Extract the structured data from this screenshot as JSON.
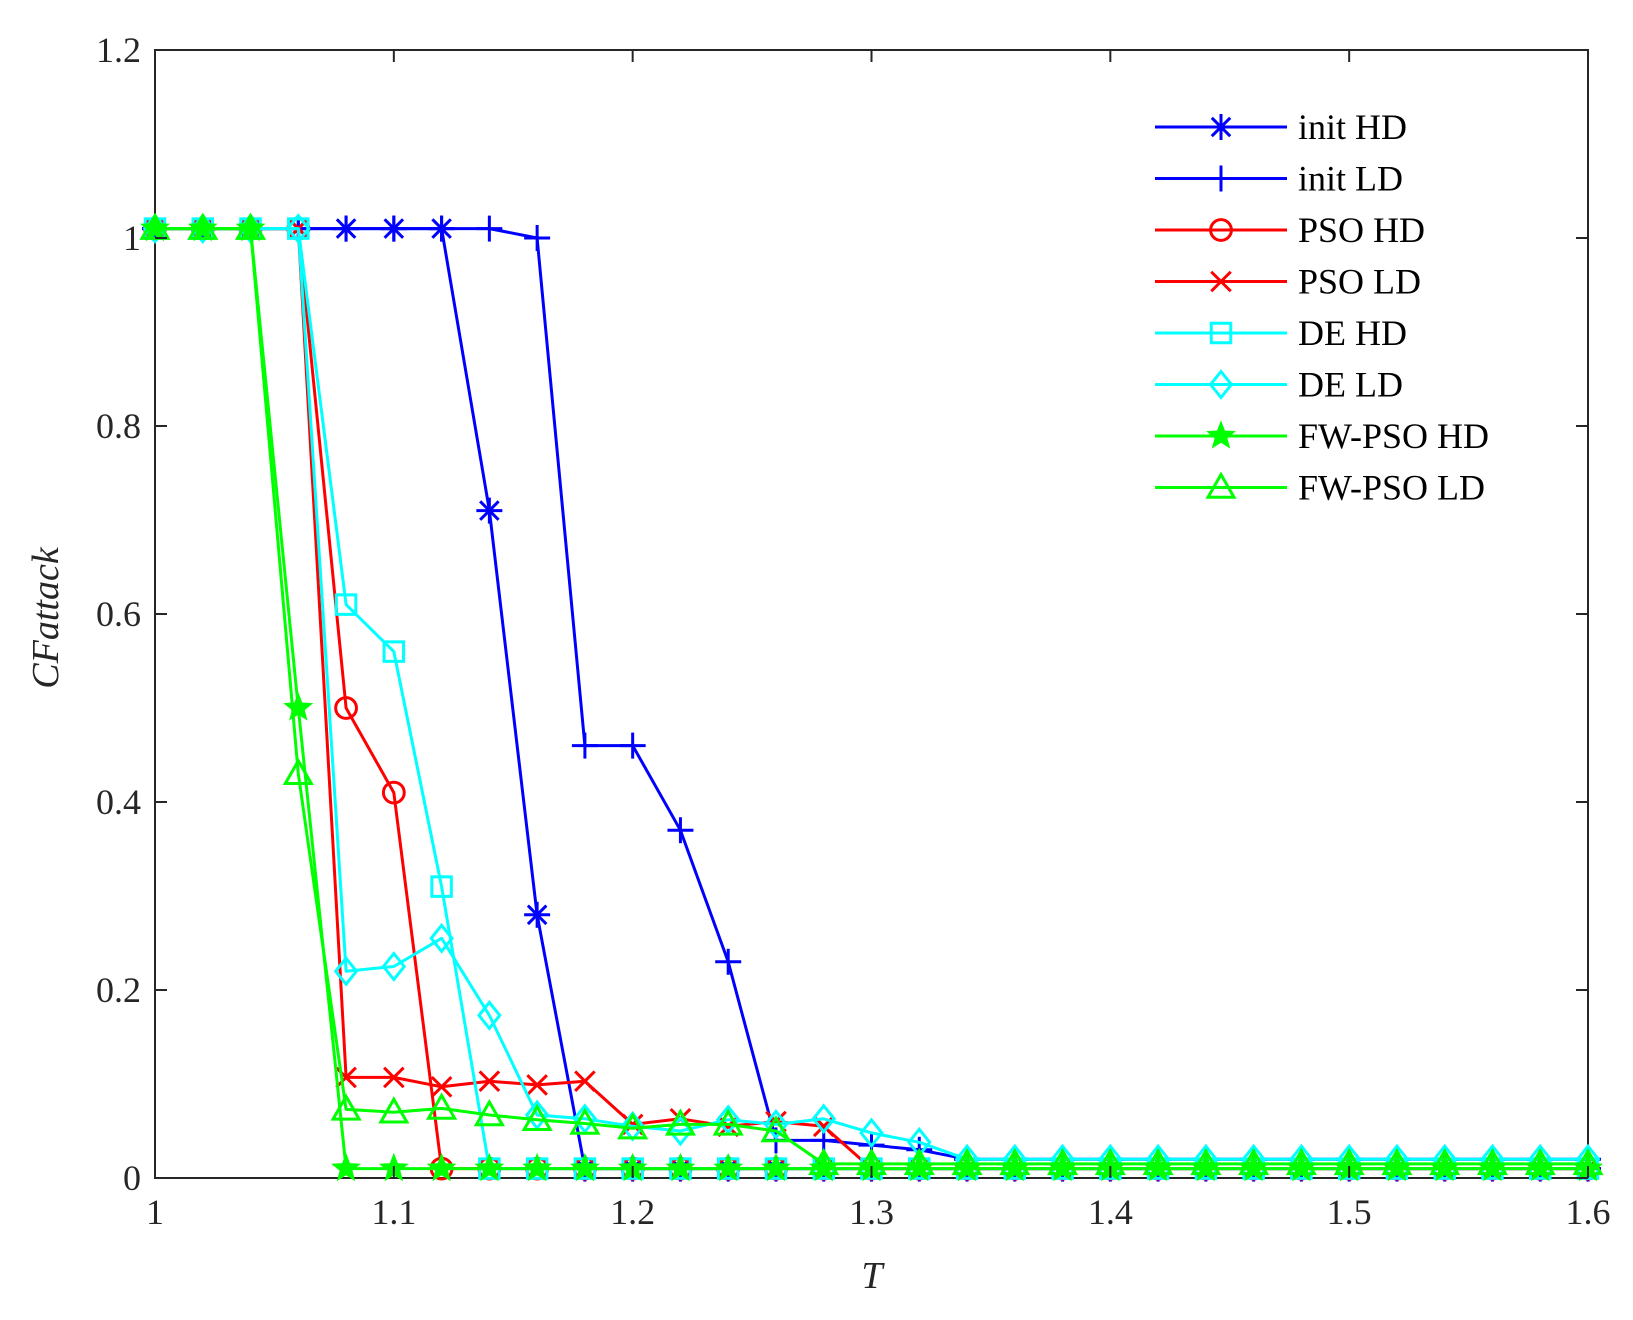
{
  "chart_data": {
    "type": "line",
    "title": "",
    "xlabel": "T",
    "ylabel": "CFattack",
    "xlim": [
      1,
      1.6
    ],
    "ylim": [
      0,
      1.2
    ],
    "xticks": [
      "1",
      "1.1",
      "1.2",
      "1.3",
      "1.4",
      "1.5",
      "1.6"
    ],
    "yticks": [
      "0",
      "0.2",
      "0.4",
      "0.6",
      "0.8",
      "1",
      "1.2"
    ],
    "grid": false,
    "legend_position": "top-right",
    "x": [
      1.0,
      1.02,
      1.04,
      1.06,
      1.08,
      1.1,
      1.12,
      1.14,
      1.16,
      1.18,
      1.2,
      1.22,
      1.24,
      1.26,
      1.28,
      1.3,
      1.32,
      1.34,
      1.36,
      1.38,
      1.4,
      1.42,
      1.44,
      1.46,
      1.48,
      1.5,
      1.52,
      1.54,
      1.56,
      1.58,
      1.6
    ],
    "series": [
      {
        "name": "init HD",
        "color": "#0000ff",
        "marker": "asterisk",
        "values": [
          1.01,
          1.01,
          1.01,
          1.01,
          1.01,
          1.01,
          1.01,
          0.71,
          0.28,
          0.01,
          0.01,
          0.01,
          0.01,
          0.01,
          0.01,
          0.01,
          0.01,
          0.01,
          0.01,
          0.01,
          0.01,
          0.01,
          0.01,
          0.01,
          0.01,
          0.01,
          0.01,
          0.01,
          0.01,
          0.01,
          0.01
        ]
      },
      {
        "name": "init LD",
        "color": "#0000ff",
        "marker": "plus",
        "values": [
          1.01,
          1.01,
          1.01,
          1.01,
          1.01,
          1.01,
          1.01,
          1.01,
          1.0,
          0.46,
          0.46,
          0.37,
          0.23,
          0.04,
          0.04,
          0.035,
          0.03,
          0.02,
          0.02,
          0.02,
          0.02,
          0.02,
          0.02,
          0.02,
          0.02,
          0.02,
          0.02,
          0.02,
          0.02,
          0.02,
          0.02
        ]
      },
      {
        "name": "PSO HD",
        "color": "#ff0000",
        "marker": "circle",
        "values": [
          1.01,
          1.01,
          1.01,
          1.01,
          0.5,
          0.41,
          0.01,
          0.01,
          0.01,
          0.01,
          0.01,
          0.01,
          0.01,
          0.01,
          0.01,
          0.01,
          0.01,
          0.01,
          0.01,
          0.01,
          0.01,
          0.01,
          0.01,
          0.01,
          0.01,
          0.01,
          0.01,
          0.01,
          0.01,
          0.01,
          0.01
        ]
      },
      {
        "name": "PSO LD",
        "color": "#ff0000",
        "marker": "x",
        "values": [
          1.01,
          1.01,
          1.01,
          1.01,
          0.107,
          0.107,
          0.097,
          0.103,
          0.099,
          0.103,
          0.057,
          0.063,
          0.055,
          0.06,
          0.055,
          0.01,
          0.01,
          0.01,
          0.01,
          0.01,
          0.01,
          0.01,
          0.01,
          0.01,
          0.01,
          0.01,
          0.01,
          0.01,
          0.01,
          0.01,
          0.01
        ]
      },
      {
        "name": "DE HD",
        "color": "#00ffff",
        "marker": "square",
        "values": [
          1.01,
          1.01,
          1.01,
          1.01,
          0.61,
          0.56,
          0.31,
          0.01,
          0.01,
          0.01,
          0.01,
          0.01,
          0.01,
          0.01,
          0.01,
          0.01,
          0.01,
          0.01,
          0.01,
          0.01,
          0.01,
          0.01,
          0.01,
          0.01,
          0.01,
          0.01,
          0.01,
          0.01,
          0.01,
          0.01,
          0.01
        ]
      },
      {
        "name": "DE LD",
        "color": "#00ffff",
        "marker": "diamond",
        "values": [
          1.01,
          1.01,
          1.01,
          1.01,
          0.22,
          0.225,
          0.255,
          0.173,
          0.067,
          0.063,
          0.055,
          0.05,
          0.062,
          0.057,
          0.063,
          0.048,
          0.038,
          0.02,
          0.02,
          0.02,
          0.02,
          0.02,
          0.02,
          0.02,
          0.02,
          0.02,
          0.02,
          0.02,
          0.02,
          0.02,
          0.02
        ]
      },
      {
        "name": "FW-PSO HD",
        "color": "#00ff00",
        "marker": "star",
        "values": [
          1.01,
          1.01,
          1.01,
          0.5,
          0.01,
          0.01,
          0.01,
          0.01,
          0.01,
          0.01,
          0.01,
          0.01,
          0.01,
          0.01,
          0.01,
          0.01,
          0.01,
          0.01,
          0.01,
          0.01,
          0.01,
          0.01,
          0.01,
          0.01,
          0.01,
          0.01,
          0.01,
          0.01,
          0.01,
          0.01,
          0.01
        ]
      },
      {
        "name": "FW-PSO LD",
        "color": "#00ff00",
        "marker": "triangle",
        "values": [
          1.01,
          1.01,
          1.01,
          0.43,
          0.073,
          0.07,
          0.074,
          0.067,
          0.062,
          0.058,
          0.053,
          0.057,
          0.057,
          0.05,
          0.015,
          0.015,
          0.015,
          0.015,
          0.015,
          0.015,
          0.015,
          0.015,
          0.015,
          0.015,
          0.015,
          0.015,
          0.015,
          0.015,
          0.015,
          0.015,
          0.015
        ]
      }
    ]
  }
}
